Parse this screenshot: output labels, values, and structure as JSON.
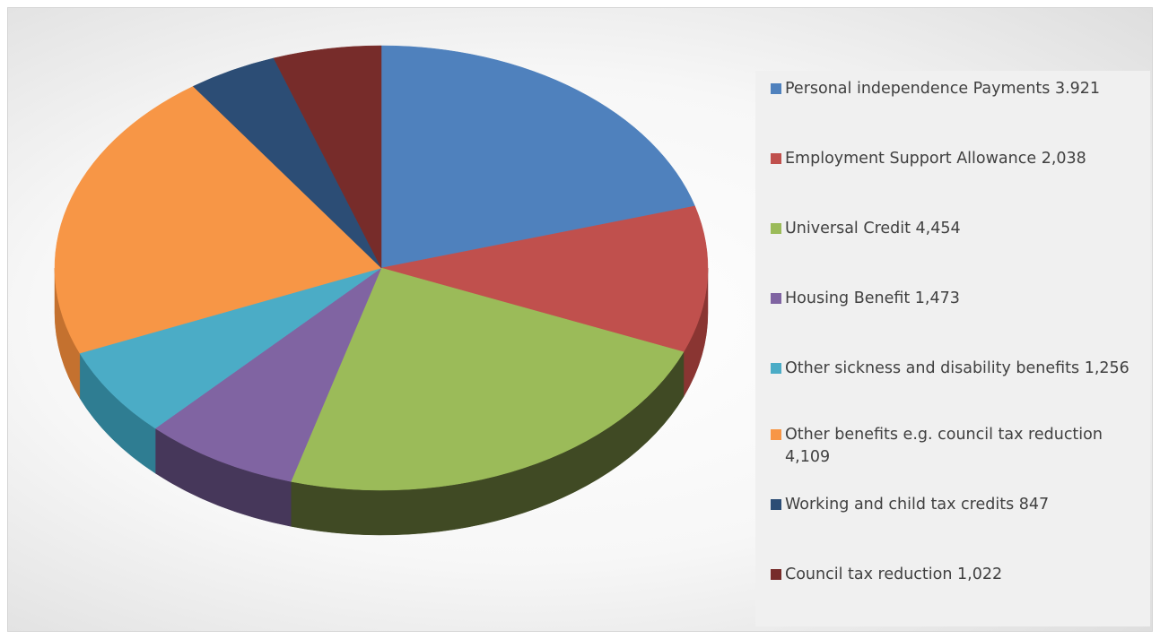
{
  "chart_data": {
    "type": "pie",
    "style": "3d",
    "legend_position": "right",
    "slices": [
      {
        "label": "Personal independence Payments 3.921",
        "value": 3921,
        "color": "#4f81bd",
        "side_color": "#3a6190"
      },
      {
        "label": "Employment Support Allowance  2,038",
        "value": 2038,
        "color": "#c0504d",
        "side_color": "#8a3532"
      },
      {
        "label": "Universal Credit  4,454",
        "value": 4454,
        "color": "#9bbb59",
        "side_color": "#404a24"
      },
      {
        "label": "Housing Benefit  1,473",
        "value": 1473,
        "color": "#8064a2",
        "side_color": "#46375a"
      },
      {
        "label": "Other sickness and disability benefits  1,256",
        "value": 1256,
        "color": "#4bacc6",
        "side_color": "#2f7d92"
      },
      {
        "label": "Other benefits e.g. council tax reduction  4,109",
        "value": 4109,
        "color": "#f79646",
        "side_color": "#c4712f"
      },
      {
        "label": "Working and child tax credits  847",
        "value": 847,
        "color": "#2c4d75",
        "side_color": "#1c3350"
      },
      {
        "label": "Council tax reduction  1,022",
        "value": 1022,
        "color": "#772c2a",
        "side_color": "#4f1c1b"
      }
    ]
  }
}
